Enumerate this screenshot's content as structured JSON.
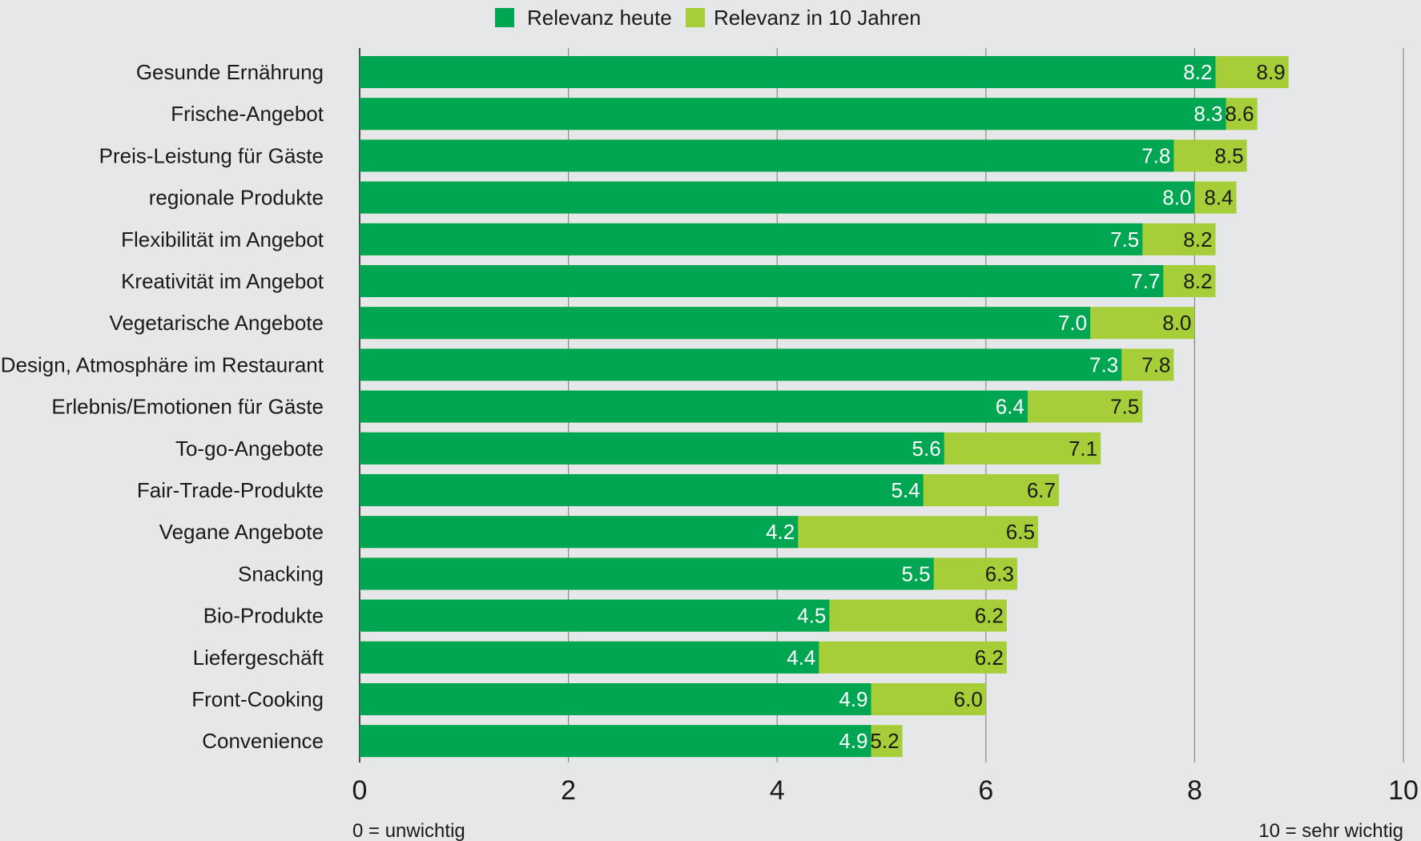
{
  "colors": {
    "background": "#e6e7e8",
    "today": "#00a651",
    "future": "#a6ce39",
    "grid": "#8a8a8a",
    "axis": "#4d4d4d"
  },
  "chart_data": {
    "type": "bar",
    "orientation": "horizontal",
    "layout": "overlapping",
    "categories": [
      "Gesunde Ernährung",
      "Frische-Angebot",
      "Preis-Leistung für Gäste",
      "regionale Produkte",
      "Flexibilität im Angebot",
      "Kreativität im Angebot",
      "Vegetarische Angebote",
      "Design, Atmosphäre im Restaurant",
      "Erlebnis/Emotionen für Gäste",
      "To-go-Angebote",
      "Fair-Trade-Produkte",
      "Vegane Angebote",
      "Snacking",
      "Bio-Produkte",
      "Liefergeschäft",
      "Front-Cooking",
      "Convenience"
    ],
    "series": [
      {
        "name": "Relevanz heute",
        "color": "#00a651",
        "values": [
          8.2,
          8.3,
          7.8,
          8.0,
          7.5,
          7.7,
          7.0,
          7.3,
          6.4,
          5.6,
          5.4,
          4.2,
          5.5,
          4.5,
          4.4,
          4.9,
          4.9
        ],
        "labels": [
          "8.2",
          "8.3",
          "7.8",
          "8.0",
          "7.5",
          "7.7",
          "7.0",
          "7.3",
          "6.4",
          "5.6",
          "5.4",
          "4.2",
          "5.5",
          "4.5",
          "4.4",
          "4.9",
          "4.9"
        ]
      },
      {
        "name": "Relevanz in 10 Jahren",
        "color": "#a6ce39",
        "values": [
          8.9,
          8.6,
          8.5,
          8.4,
          8.2,
          8.2,
          8.0,
          7.8,
          7.5,
          7.1,
          6.7,
          6.5,
          6.3,
          6.2,
          6.2,
          6.0,
          5.2
        ],
        "labels": [
          "8.9",
          "8.6",
          "8.5",
          "8.4",
          "8.2",
          "8.2",
          "8.0",
          "7.8",
          "7.5",
          "7.1",
          "6.7",
          "6.5",
          "6.3",
          "6.2",
          "6.2",
          "6.0",
          "5.2"
        ]
      }
    ],
    "xlim": [
      0,
      10
    ],
    "xticks": [
      0,
      2,
      4,
      6,
      8,
      10
    ],
    "xtick_labels": [
      "0",
      "2",
      "4",
      "6",
      "8",
      "10"
    ],
    "grid": true,
    "legend_position": "top-center",
    "annotations": {
      "low_end": "0 = unwichtig",
      "high_end": "10 = sehr wichtig"
    }
  }
}
